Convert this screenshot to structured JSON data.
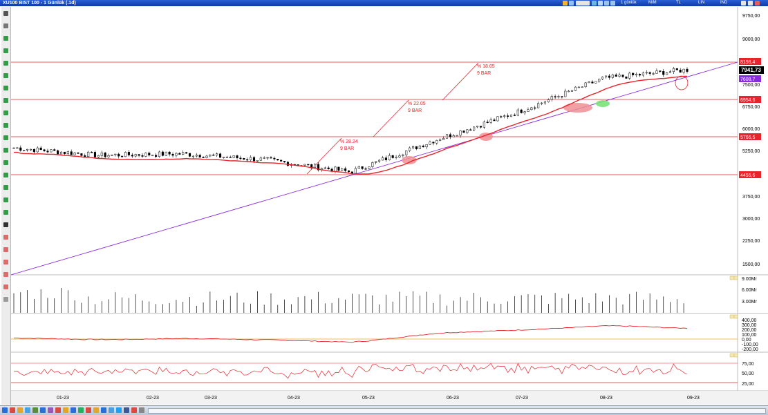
{
  "window": {
    "title": "XU100 BIST 100 - 1 Günlük (.1d)"
  },
  "topbar": {
    "mode_value": "1 günlük",
    "label_m": "M/M",
    "label_tl": "TL",
    "label_lin": "LIN",
    "label_ind": "İND"
  },
  "colors": {
    "price_line": "#e8232a",
    "trend_line": "#8a2be2",
    "last_price_bg": "#000000",
    "highlight_red": "#f08f93",
    "highlight_green": "#7de07a"
  },
  "price_axis": {
    "ticks": [
      "9750,00",
      "9000,00",
      "8250,00",
      "7500,00",
      "6750,00",
      "6000,00",
      "5250,00",
      "4500,00",
      "3750,00",
      "3000,00",
      "2250,00",
      "1500,00"
    ],
    "last_price": "7941,73",
    "tag_8198": "8198,4",
    "tag_7608": "7608,7",
    "tag_6954": "6954,6",
    "tag_5766": "5766,5",
    "tag_4455": "4455,6"
  },
  "annotations": [
    {
      "pct": "% 28.24",
      "bars": "9 BAR"
    },
    {
      "pct": "% 22.05",
      "bars": "9 BAR"
    },
    {
      "pct": "% 18.05",
      "bars": "9 BAR"
    }
  ],
  "volume_axis": [
    "9.00Mr",
    "6.00Mr",
    "3.00Mr"
  ],
  "indicator1_axis": [
    "400,00",
    "300,00",
    "200,00",
    "100,00",
    "0,00",
    "-100,00",
    "-200,00"
  ],
  "indicator2_axis": [
    "75,00",
    "50,00",
    "25,00"
  ],
  "x_axis": [
    "01-23",
    "02-23",
    "03-23",
    "04-23",
    "05-23",
    "06-23",
    "07-23",
    "08-23",
    "09-23"
  ],
  "chart_data": {
    "type": "candlestick",
    "instrument": "XU100 BIST 100",
    "period": "1 Günlük",
    "x_labels": [
      "01-23",
      "02-23",
      "03-23",
      "04-23",
      "05-23",
      "06-23",
      "07-23",
      "08-23",
      "09-23"
    ],
    "last_close": 7941.73,
    "horizontal_levels": [
      8198.4,
      6954.6,
      5766.5,
      4455.6
    ],
    "approx_monthly_close": [
      5350,
      5100,
      5150,
      4950,
      4550,
      5600,
      6550,
      7650,
      7940
    ],
    "y_range": [
      1000,
      10300
    ],
    "moving_average": true,
    "trend_line": true
  }
}
